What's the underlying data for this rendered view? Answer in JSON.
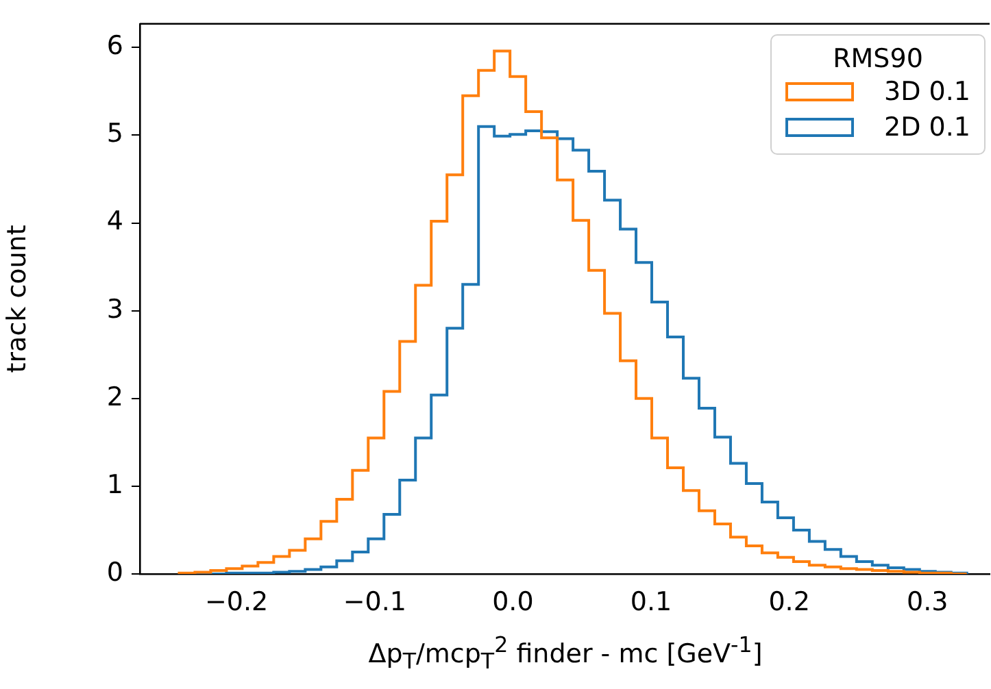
{
  "chart_data": {
    "type": "histogram",
    "xlabel": "Δp$_{T}$/mcp$_{T}$$^{2}$ finder - mc [GeV$^{-1}$]",
    "ylabel": "track count",
    "legend_title": "RMS90",
    "legend": "top right",
    "grid": false,
    "bins": [
      -0.2415,
      -0.2301,
      -0.2187,
      -0.2073,
      -0.1959,
      -0.1845,
      -0.1731,
      -0.1617,
      -0.1503,
      -0.1389,
      -0.1275,
      -0.1161,
      -0.1047,
      -0.0933,
      -0.0819,
      -0.0705,
      -0.0591,
      -0.0477,
      -0.0363,
      -0.0249,
      -0.0135,
      -0.0021,
      0.0093,
      0.0207,
      0.0321,
      0.0435,
      0.0549,
      0.0663,
      0.0777,
      0.0891,
      0.1005,
      0.1119,
      0.1233,
      0.1347,
      0.1461,
      0.1575,
      0.1689,
      0.1803,
      0.1917,
      0.2031,
      0.2145,
      0.2259,
      0.2373,
      0.2487,
      0.2601,
      0.2715,
      0.2829,
      0.2943,
      0.3057,
      0.3171,
      0.3285
    ],
    "series": [
      {
        "name": "3D 0.1",
        "color": "#ff7f0e",
        "values": [
          0.01,
          0.02,
          0.04,
          0.06,
          0.09,
          0.13,
          0.2,
          0.27,
          0.4,
          0.6,
          0.85,
          1.18,
          1.55,
          2.08,
          2.65,
          3.29,
          4.02,
          4.55,
          5.45,
          5.74,
          5.96,
          5.67,
          5.27,
          4.97,
          4.49,
          4.03,
          3.46,
          2.97,
          2.43,
          2.0,
          1.55,
          1.21,
          0.95,
          0.72,
          0.57,
          0.42,
          0.32,
          0.24,
          0.19,
          0.14,
          0.1,
          0.08,
          0.06,
          0.05,
          0.04,
          0.03,
          0.02,
          0.01,
          0.01,
          0
        ]
      },
      {
        "name": "2D 0.1",
        "color": "#1f77b4",
        "values": [
          0,
          0,
          0,
          0.01,
          0.01,
          0.01,
          0.02,
          0.03,
          0.05,
          0.08,
          0.15,
          0.25,
          0.4,
          0.68,
          1.07,
          1.55,
          2.04,
          2.8,
          3.3,
          5.1,
          4.99,
          5.01,
          5.05,
          5.04,
          4.96,
          4.83,
          4.59,
          4.26,
          3.93,
          3.55,
          3.1,
          2.7,
          2.23,
          1.89,
          1.56,
          1.26,
          1.03,
          0.82,
          0.64,
          0.5,
          0.37,
          0.28,
          0.2,
          0.14,
          0.1,
          0.07,
          0.05,
          0.03,
          0.02,
          0.01
        ]
      }
    ],
    "xlim": [
      -0.27,
      0.345
    ],
    "ylim": [
      0,
      6.27
    ],
    "xticks": [
      {
        "value": -0.2,
        "label": "−0.2"
      },
      {
        "value": -0.1,
        "label": "−0.1"
      },
      {
        "value": 0,
        "label": "0.0"
      },
      {
        "value": 0.1,
        "label": "0.1"
      },
      {
        "value": 0.2,
        "label": "0.2"
      },
      {
        "value": 0.3,
        "label": "0.3"
      }
    ],
    "yticks": [
      0,
      1,
      2,
      3,
      4,
      5,
      6
    ]
  }
}
